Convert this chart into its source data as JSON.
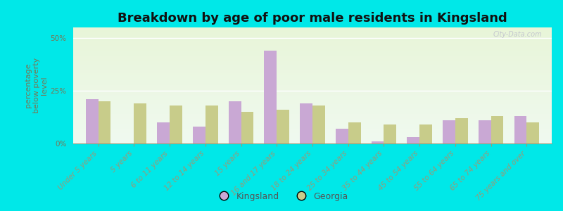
{
  "title": "Breakdown by age of poor male residents in Kingsland",
  "ylabel": "percentage\nbelow poverty\nlevel",
  "categories": [
    "Under 5 years",
    "5 years",
    "6 to 11 years",
    "12 to 14 years",
    "15 years",
    "16 and 17 years",
    "18 to 24 years",
    "25 to 34 years",
    "35 to 44 years",
    "45 to 54 years",
    "55 to 64 years",
    "65 to 74 years",
    "75 years and over"
  ],
  "kingsland": [
    21,
    0,
    10,
    8,
    20,
    44,
    19,
    7,
    1,
    3,
    11,
    11,
    13
  ],
  "georgia": [
    20,
    19,
    18,
    18,
    15,
    16,
    18,
    10,
    9,
    9,
    12,
    13,
    10
  ],
  "kingsland_color": "#c9a8d4",
  "georgia_color": "#c8cc8a",
  "bg_top": "#f0faf0",
  "bg_bottom": "#e8f5d8",
  "outer_bg": "#00e8e8",
  "yticks": [
    0,
    25,
    50
  ],
  "ylim": [
    0,
    55
  ],
  "bar_width": 0.35,
  "title_fontsize": 13,
  "axis_label_fontsize": 8,
  "tick_fontsize": 7.5,
  "legend_fontsize": 9,
  "tick_color": "#777755",
  "watermark": "City-Data.com"
}
